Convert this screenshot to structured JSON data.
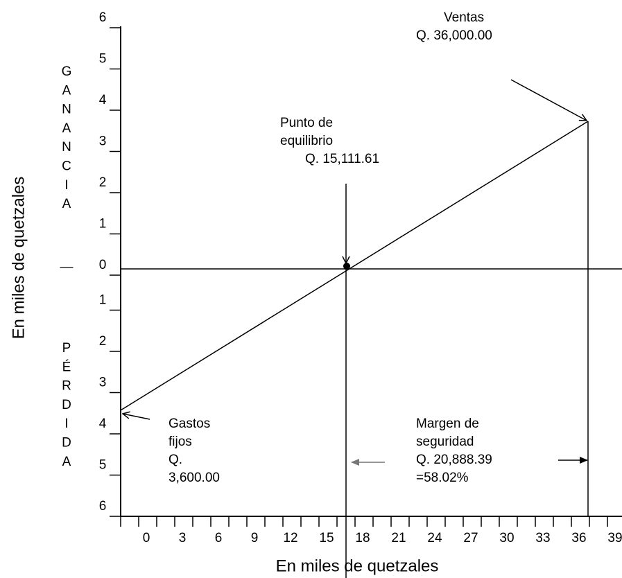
{
  "ylabel": "En miles de quetzales",
  "xlabel": "En miles de quetzales",
  "gain_letters": [
    "G",
    "A",
    "N",
    "A",
    "N",
    "C",
    "I",
    "A"
  ],
  "loss_letters": [
    "P",
    "É",
    "R",
    "D",
    "I",
    "D",
    "A"
  ],
  "zero_mark": "—",
  "yticks_top": [
    "6",
    "5",
    "4",
    "3",
    "2",
    "1",
    "0"
  ],
  "yticks_bottom": [
    "1",
    "2",
    "3",
    "4",
    "5",
    "6"
  ],
  "xticks": [
    "0",
    "3",
    "6",
    "9",
    "12",
    "15",
    "18",
    "21",
    "24",
    "27",
    "30",
    "33",
    "36",
    "39"
  ],
  "annotations": {
    "sales": [
      "Ventas",
      "Q. 36,000.00"
    ],
    "breakeven": [
      "Punto de",
      "equilibrio",
      "Q. 15,111.61"
    ],
    "fixed": [
      "Gastos",
      "fijos",
      "Q.",
      "3,600.00"
    ],
    "margin": [
      "Margen de",
      "seguridad",
      "Q. 20,888.39",
      "=58.02%"
    ]
  }
}
